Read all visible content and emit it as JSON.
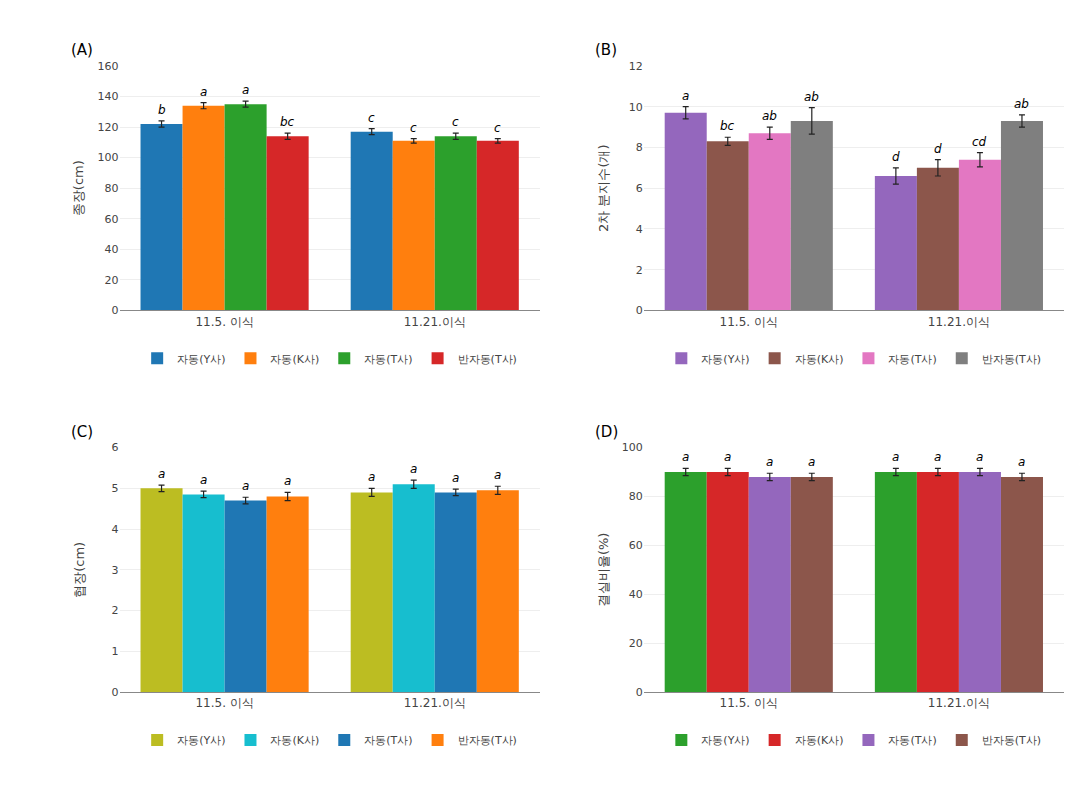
{
  "chart_data": [
    {
      "type": "bar",
      "title": "(A)",
      "categories": [
        "11.5. 이식",
        "11.21.이식"
      ],
      "ylabel": "종장(cm)",
      "ylim": [
        0,
        160
      ],
      "yticks": [
        0,
        20,
        40,
        60,
        80,
        100,
        120,
        140,
        160
      ],
      "grid": true,
      "legend": "bottom",
      "series": [
        {
          "name": "자동(Y사)",
          "values": [
            122,
            117
          ],
          "errors": [
            2,
            2
          ],
          "letters": [
            "b",
            "c"
          ]
        },
        {
          "name": "자동(K사)",
          "values": [
            134,
            111
          ],
          "errors": [
            2,
            1.5
          ],
          "letters": [
            "a",
            "c"
          ]
        },
        {
          "name": "자동(T사)",
          "values": [
            135,
            114
          ],
          "errors": [
            2,
            2
          ],
          "letters": [
            "a",
            "c"
          ]
        },
        {
          "name": "반자동(T사)",
          "values": [
            114,
            111
          ],
          "errors": [
            2,
            1.5
          ],
          "letters": [
            "bc",
            "c"
          ]
        }
      ]
    },
    {
      "type": "bar",
      "title": "(B)",
      "categories": [
        "11.5. 이식",
        "11.21.이식"
      ],
      "ylabel": "2차 분지수(개)",
      "ylim": [
        0,
        12
      ],
      "yticks": [
        0,
        2,
        4,
        6,
        8,
        10,
        12
      ],
      "grid": true,
      "legend": "bottom",
      "series": [
        {
          "name": "자동(Y사)",
          "values": [
            9.7,
            6.6
          ],
          "errors": [
            0.3,
            0.4
          ],
          "letters": [
            "a",
            "d"
          ]
        },
        {
          "name": "자동(K사)",
          "values": [
            8.3,
            7.0
          ],
          "errors": [
            0.2,
            0.4
          ],
          "letters": [
            "bc",
            "d"
          ]
        },
        {
          "name": "자동(T사)",
          "values": [
            8.7,
            7.4
          ],
          "errors": [
            0.3,
            0.35
          ],
          "letters": [
            "ab",
            "cd"
          ]
        },
        {
          "name": "반자동(T사)",
          "values": [
            9.3,
            9.3
          ],
          "errors": [
            0.65,
            0.3
          ],
          "letters": [
            "ab",
            "ab"
          ]
        }
      ]
    },
    {
      "type": "bar",
      "title": "(C)",
      "categories": [
        "11.5. 이식",
        "11.21.이식"
      ],
      "ylabel": "협장(cm)",
      "ylim": [
        0,
        6
      ],
      "yticks": [
        0,
        1,
        2,
        3,
        4,
        5,
        6
      ],
      "grid": true,
      "legend": "bottom",
      "series": [
        {
          "name": "자동(Y사)",
          "values": [
            5.0,
            4.9
          ],
          "errors": [
            0.08,
            0.1
          ],
          "letters": [
            "a",
            "a"
          ]
        },
        {
          "name": "자동(K사)",
          "values": [
            4.85,
            5.1
          ],
          "errors": [
            0.08,
            0.1
          ],
          "letters": [
            "a",
            "a"
          ]
        },
        {
          "name": "자동(T사)",
          "values": [
            4.7,
            4.9
          ],
          "errors": [
            0.08,
            0.08
          ],
          "letters": [
            "a",
            "a"
          ]
        },
        {
          "name": "반자동(T사)",
          "values": [
            4.8,
            4.95
          ],
          "errors": [
            0.1,
            0.1
          ],
          "letters": [
            "a",
            "a"
          ]
        }
      ]
    },
    {
      "type": "bar",
      "title": "(D)",
      "categories": [
        "11.5. 이식",
        "11.21.이식"
      ],
      "ylabel": "결실비율(%)",
      "ylim": [
        0,
        100
      ],
      "yticks": [
        0,
        20,
        40,
        60,
        80,
        100
      ],
      "grid": true,
      "legend": "bottom",
      "series": [
        {
          "name": "자동(Y사)",
          "values": [
            90,
            90
          ],
          "errors": [
            1.5,
            1.5
          ],
          "letters": [
            "a",
            "a"
          ]
        },
        {
          "name": "자동(K사)",
          "values": [
            90,
            90
          ],
          "errors": [
            1.5,
            1.5
          ],
          "letters": [
            "a",
            "a"
          ]
        },
        {
          "name": "자동(T사)",
          "values": [
            88,
            90
          ],
          "errors": [
            1.5,
            1.5
          ],
          "letters": [
            "a",
            "a"
          ]
        },
        {
          "name": "반자동(T사)",
          "values": [
            88,
            88
          ],
          "errors": [
            1.5,
            1.5
          ],
          "letters": [
            "a",
            "a"
          ]
        }
      ]
    }
  ]
}
